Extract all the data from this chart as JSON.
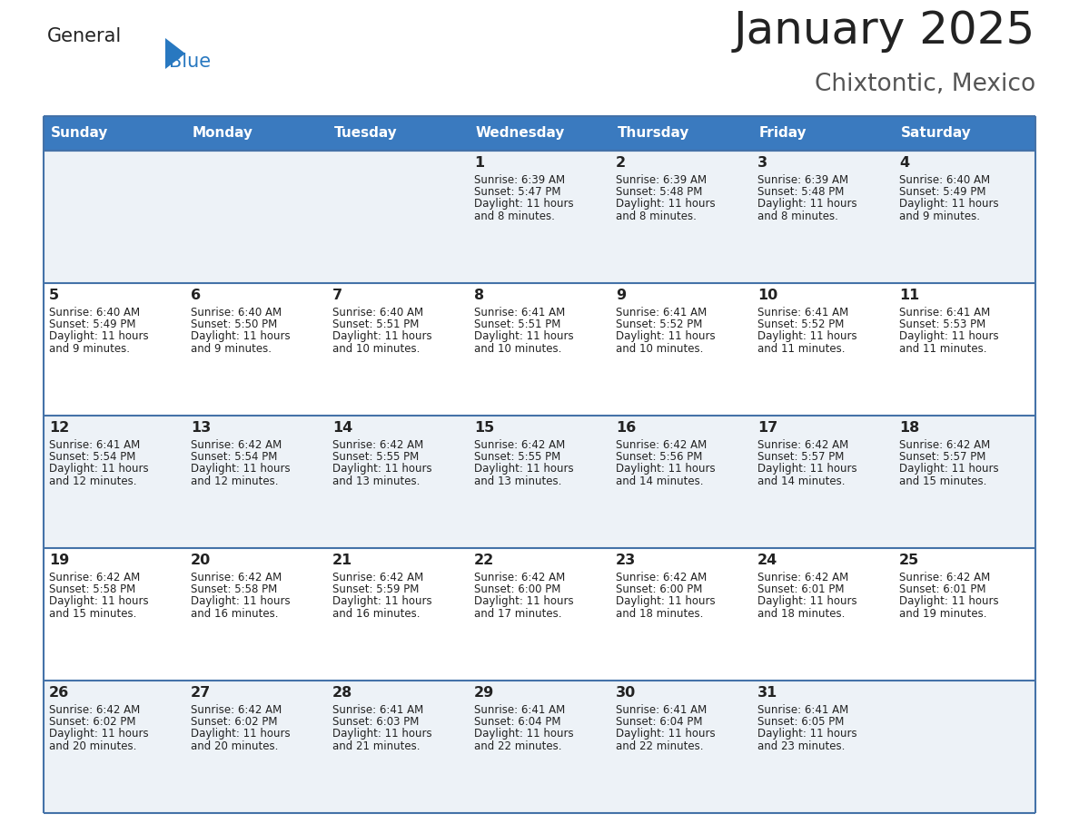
{
  "title": "January 2025",
  "subtitle": "Chixtontic, Mexico",
  "header_bg": "#3a7abf",
  "header_text_color": "#ffffff",
  "days_of_week": [
    "Sunday",
    "Monday",
    "Tuesday",
    "Wednesday",
    "Thursday",
    "Friday",
    "Saturday"
  ],
  "row_bg_even": "#edf2f7",
  "row_bg_odd": "#ffffff",
  "cell_border_color": "#4472a8",
  "day_number_color": "#222222",
  "info_text_color": "#222222",
  "calendar_data": [
    [
      {
        "day": "",
        "sunrise": "",
        "sunset": "",
        "daylight": ""
      },
      {
        "day": "",
        "sunrise": "",
        "sunset": "",
        "daylight": ""
      },
      {
        "day": "",
        "sunrise": "",
        "sunset": "",
        "daylight": ""
      },
      {
        "day": "1",
        "sunrise": "6:39 AM",
        "sunset": "5:47 PM",
        "daylight": "11 hours and 8 minutes."
      },
      {
        "day": "2",
        "sunrise": "6:39 AM",
        "sunset": "5:48 PM",
        "daylight": "11 hours and 8 minutes."
      },
      {
        "day": "3",
        "sunrise": "6:39 AM",
        "sunset": "5:48 PM",
        "daylight": "11 hours and 8 minutes."
      },
      {
        "day": "4",
        "sunrise": "6:40 AM",
        "sunset": "5:49 PM",
        "daylight": "11 hours and 9 minutes."
      }
    ],
    [
      {
        "day": "5",
        "sunrise": "6:40 AM",
        "sunset": "5:49 PM",
        "daylight": "11 hours and 9 minutes."
      },
      {
        "day": "6",
        "sunrise": "6:40 AM",
        "sunset": "5:50 PM",
        "daylight": "11 hours and 9 minutes."
      },
      {
        "day": "7",
        "sunrise": "6:40 AM",
        "sunset": "5:51 PM",
        "daylight": "11 hours and 10 minutes."
      },
      {
        "day": "8",
        "sunrise": "6:41 AM",
        "sunset": "5:51 PM",
        "daylight": "11 hours and 10 minutes."
      },
      {
        "day": "9",
        "sunrise": "6:41 AM",
        "sunset": "5:52 PM",
        "daylight": "11 hours and 10 minutes."
      },
      {
        "day": "10",
        "sunrise": "6:41 AM",
        "sunset": "5:52 PM",
        "daylight": "11 hours and 11 minutes."
      },
      {
        "day": "11",
        "sunrise": "6:41 AM",
        "sunset": "5:53 PM",
        "daylight": "11 hours and 11 minutes."
      }
    ],
    [
      {
        "day": "12",
        "sunrise": "6:41 AM",
        "sunset": "5:54 PM",
        "daylight": "11 hours and 12 minutes."
      },
      {
        "day": "13",
        "sunrise": "6:42 AM",
        "sunset": "5:54 PM",
        "daylight": "11 hours and 12 minutes."
      },
      {
        "day": "14",
        "sunrise": "6:42 AM",
        "sunset": "5:55 PM",
        "daylight": "11 hours and 13 minutes."
      },
      {
        "day": "15",
        "sunrise": "6:42 AM",
        "sunset": "5:55 PM",
        "daylight": "11 hours and 13 minutes."
      },
      {
        "day": "16",
        "sunrise": "6:42 AM",
        "sunset": "5:56 PM",
        "daylight": "11 hours and 14 minutes."
      },
      {
        "day": "17",
        "sunrise": "6:42 AM",
        "sunset": "5:57 PM",
        "daylight": "11 hours and 14 minutes."
      },
      {
        "day": "18",
        "sunrise": "6:42 AM",
        "sunset": "5:57 PM",
        "daylight": "11 hours and 15 minutes."
      }
    ],
    [
      {
        "day": "19",
        "sunrise": "6:42 AM",
        "sunset": "5:58 PM",
        "daylight": "11 hours and 15 minutes."
      },
      {
        "day": "20",
        "sunrise": "6:42 AM",
        "sunset": "5:58 PM",
        "daylight": "11 hours and 16 minutes."
      },
      {
        "day": "21",
        "sunrise": "6:42 AM",
        "sunset": "5:59 PM",
        "daylight": "11 hours and 16 minutes."
      },
      {
        "day": "22",
        "sunrise": "6:42 AM",
        "sunset": "6:00 PM",
        "daylight": "11 hours and 17 minutes."
      },
      {
        "day": "23",
        "sunrise": "6:42 AM",
        "sunset": "6:00 PM",
        "daylight": "11 hours and 18 minutes."
      },
      {
        "day": "24",
        "sunrise": "6:42 AM",
        "sunset": "6:01 PM",
        "daylight": "11 hours and 18 minutes."
      },
      {
        "day": "25",
        "sunrise": "6:42 AM",
        "sunset": "6:01 PM",
        "daylight": "11 hours and 19 minutes."
      }
    ],
    [
      {
        "day": "26",
        "sunrise": "6:42 AM",
        "sunset": "6:02 PM",
        "daylight": "11 hours and 20 minutes."
      },
      {
        "day": "27",
        "sunrise": "6:42 AM",
        "sunset": "6:02 PM",
        "daylight": "11 hours and 20 minutes."
      },
      {
        "day": "28",
        "sunrise": "6:41 AM",
        "sunset": "6:03 PM",
        "daylight": "11 hours and 21 minutes."
      },
      {
        "day": "29",
        "sunrise": "6:41 AM",
        "sunset": "6:04 PM",
        "daylight": "11 hours and 22 minutes."
      },
      {
        "day": "30",
        "sunrise": "6:41 AM",
        "sunset": "6:04 PM",
        "daylight": "11 hours and 22 minutes."
      },
      {
        "day": "31",
        "sunrise": "6:41 AM",
        "sunset": "6:05 PM",
        "daylight": "11 hours and 23 minutes."
      },
      {
        "day": "",
        "sunrise": "",
        "sunset": "",
        "daylight": ""
      }
    ]
  ],
  "logo_general_color": "#222222",
  "logo_blue_color": "#2878c0",
  "logo_triangle_color": "#2878c0",
  "title_color": "#222222",
  "subtitle_color": "#555555"
}
